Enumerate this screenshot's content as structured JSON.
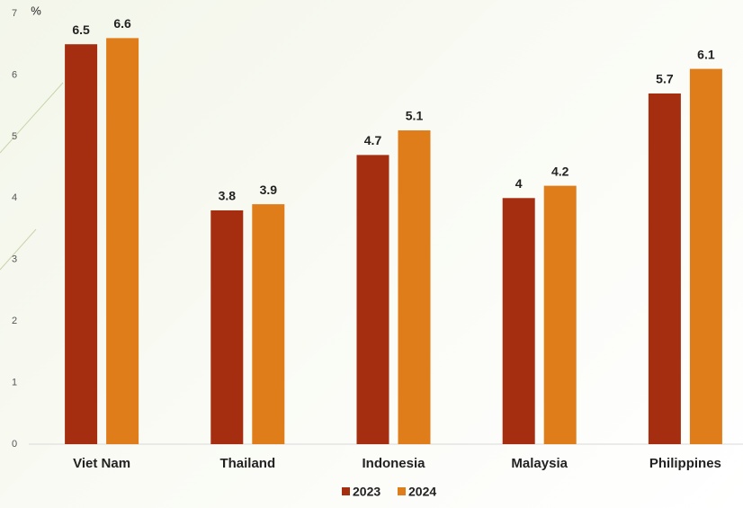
{
  "chart_data": {
    "type": "bar",
    "y_label": "%",
    "categories": [
      "Viet Nam",
      "Thailand",
      "Indonesia",
      "Malaysia",
      "Philippines"
    ],
    "series": [
      {
        "name": "2023",
        "color": "#a52d10",
        "values": [
          6.5,
          3.8,
          4.7,
          4,
          5.7
        ]
      },
      {
        "name": "2024",
        "color": "#df7d1b",
        "values": [
          6.6,
          3.9,
          5.1,
          4.2,
          6.1
        ]
      }
    ],
    "ylim": [
      0,
      7
    ],
    "yticks": [
      0,
      1,
      2,
      3,
      4,
      5,
      6,
      7
    ],
    "grid": false,
    "legend": "bottom"
  }
}
